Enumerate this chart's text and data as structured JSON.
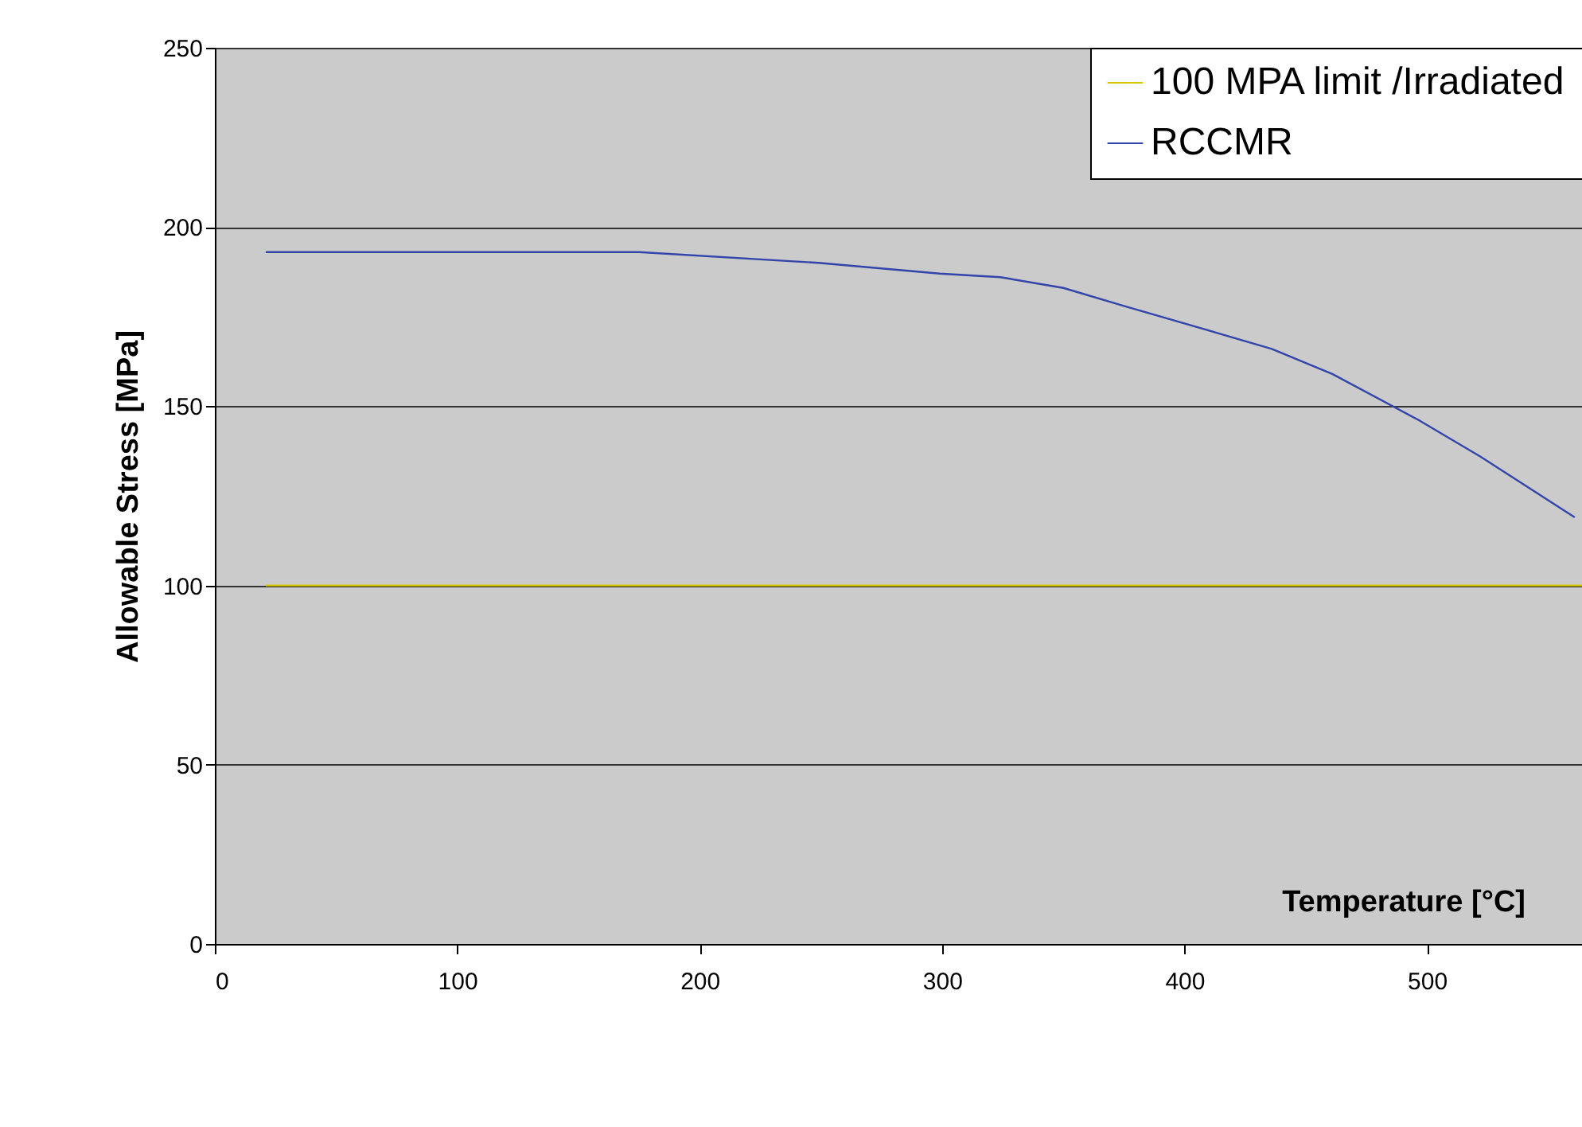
{
  "chart_data": {
    "type": "line",
    "xlabel": "Temperature [°C]",
    "ylabel": "Allowable Stress [MPa]",
    "xlim": [
      0,
      564
    ],
    "xticks": [
      0,
      100,
      200,
      300,
      400,
      500
    ],
    "ylim": [
      0,
      250
    ],
    "yticks": [
      0,
      50,
      100,
      150,
      200,
      250
    ],
    "grid": "y",
    "legend": "top right",
    "marker": "none",
    "line_style": "solid",
    "series": [
      {
        "name": "100 MPA limit /Irradiated",
        "color": "#d4c800",
        "x": [
          21,
          564
        ],
        "values": [
          100,
          100
        ]
      },
      {
        "name": "RCCMR",
        "color": "#3344aa",
        "x": [
          21,
          175,
          249,
          299,
          324,
          350,
          375,
          436,
          461,
          497,
          522,
          561
        ],
        "values": [
          193,
          193,
          190,
          187,
          186,
          183,
          178,
          166,
          159,
          146,
          136,
          119
        ]
      }
    ]
  }
}
